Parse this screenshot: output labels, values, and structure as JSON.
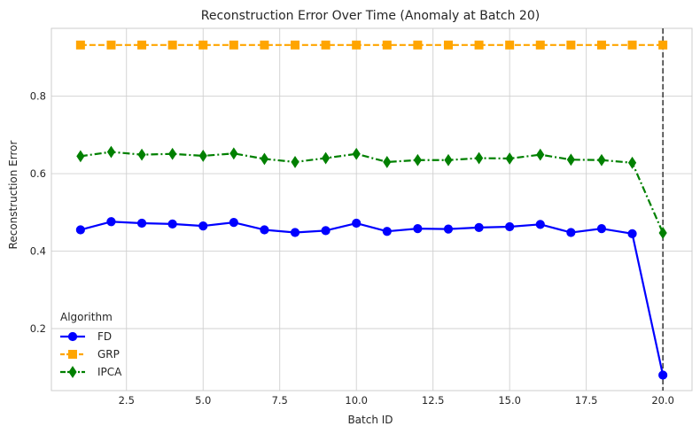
{
  "chart_data": {
    "type": "line",
    "title": "Reconstruction Error Over Time (Anomaly at Batch 20)",
    "xlabel": "Batch ID",
    "ylabel": "Reconstruction Error",
    "xlim": [
      0.05,
      20.95
    ],
    "ylim": [
      0.04,
      0.975
    ],
    "xticks": [
      2.5,
      5.0,
      7.5,
      10.0,
      12.5,
      15.0,
      17.5,
      20.0
    ],
    "xtick_labels": [
      "2.5",
      "5.0",
      "7.5",
      "10.0",
      "12.5",
      "15.0",
      "17.5",
      "20.0"
    ],
    "yticks": [
      0.2,
      0.4,
      0.6,
      0.8
    ],
    "ytick_labels": [
      "0.2",
      "0.4",
      "0.6",
      "0.8"
    ],
    "grid": true,
    "legend": {
      "title": "Algorithm",
      "placement": "lower-left"
    },
    "vline": {
      "x": 20,
      "style": "dashed",
      "color": "#333333"
    },
    "x": [
      1,
      2,
      3,
      4,
      5,
      6,
      7,
      8,
      9,
      10,
      11,
      12,
      13,
      14,
      15,
      16,
      17,
      18,
      19,
      20
    ],
    "series": [
      {
        "name": "FD",
        "color": "#0000ff",
        "marker": "circle",
        "linestyle": "solid",
        "values": [
          0.455,
          0.476,
          0.472,
          0.47,
          0.465,
          0.474,
          0.455,
          0.448,
          0.453,
          0.472,
          0.451,
          0.458,
          0.457,
          0.461,
          0.463,
          0.469,
          0.448,
          0.458,
          0.445,
          0.08
        ]
      },
      {
        "name": "GRP",
        "color": "#ffa500",
        "marker": "square",
        "linestyle": "dashed",
        "values": [
          0.932,
          0.932,
          0.932,
          0.932,
          0.932,
          0.932,
          0.932,
          0.932,
          0.932,
          0.932,
          0.932,
          0.932,
          0.932,
          0.932,
          0.932,
          0.932,
          0.932,
          0.932,
          0.932,
          0.932
        ]
      },
      {
        "name": "IPCA",
        "color": "#008000",
        "marker": "diamond",
        "linestyle": "dashdot",
        "values": [
          0.645,
          0.656,
          0.649,
          0.651,
          0.646,
          0.652,
          0.638,
          0.63,
          0.64,
          0.651,
          0.63,
          0.635,
          0.635,
          0.64,
          0.639,
          0.649,
          0.636,
          0.635,
          0.628,
          0.447
        ]
      }
    ]
  }
}
